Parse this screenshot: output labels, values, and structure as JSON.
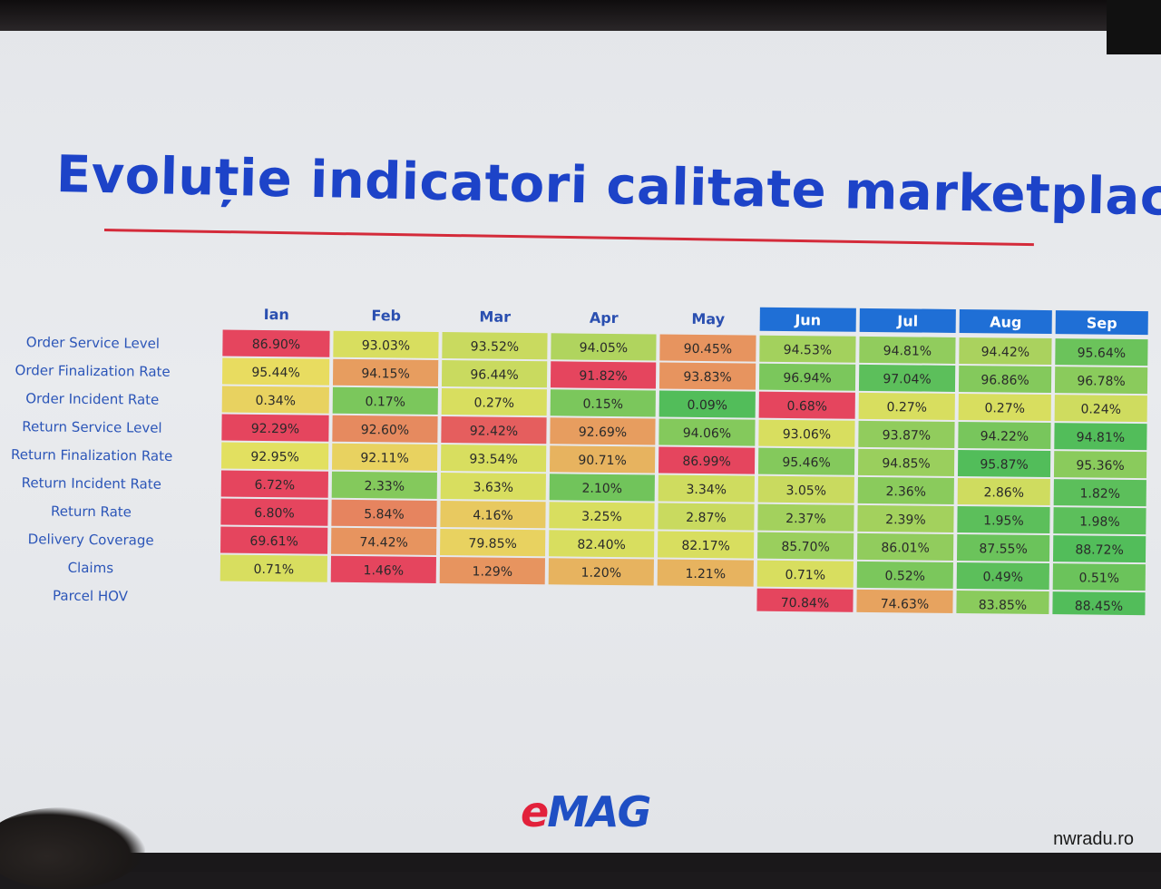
{
  "title": "Evoluție indicatori calitate marketplace",
  "logo": {
    "e": "e",
    "mag": "MAG"
  },
  "watermark": "nwradu.ro",
  "colors": {
    "title": "#1d43c8",
    "underline": "#d42b3a",
    "header_highlight": "#1f6fd6",
    "good": "#4cbb5a",
    "mid": "#e6e25a",
    "bad": "#e5455e"
  },
  "chart_data": {
    "type": "heatmap",
    "columns": [
      "Ian",
      "Feb",
      "Mar",
      "Apr",
      "May",
      "Jun",
      "Jul",
      "Aug",
      "Sep"
    ],
    "highlighted_columns": [
      "Jun",
      "Jul",
      "Aug",
      "Sep"
    ],
    "rows": [
      {
        "label": "Order Service Level",
        "values": [
          "86.90%",
          "93.03%",
          "93.52%",
          "94.05%",
          "90.45%",
          "94.53%",
          "94.81%",
          "94.42%",
          "95.64%"
        ],
        "heat": [
          0.0,
          0.55,
          0.6,
          0.68,
          0.25,
          0.72,
          0.78,
          0.7,
          0.9
        ]
      },
      {
        "label": "Order Finalization Rate",
        "values": [
          "95.44%",
          "94.15%",
          "96.44%",
          "91.82%",
          "93.83%",
          "96.94%",
          "97.04%",
          "96.86%",
          "96.78%"
        ],
        "heat": [
          0.48,
          0.28,
          0.6,
          0.0,
          0.25,
          0.85,
          0.95,
          0.82,
          0.8
        ]
      },
      {
        "label": "Order Incident Rate",
        "values": [
          "0.34%",
          "0.17%",
          "0.27%",
          "0.15%",
          "0.09%",
          "0.68%",
          "0.27%",
          "0.27%",
          "0.24%"
        ],
        "heat": [
          0.45,
          0.85,
          0.55,
          0.85,
          0.98,
          0.0,
          0.55,
          0.55,
          0.58
        ]
      },
      {
        "label": "Return Service Level",
        "values": [
          "92.29%",
          "92.60%",
          "92.42%",
          "92.69%",
          "94.06%",
          "93.06%",
          "93.87%",
          "94.22%",
          "94.81%"
        ],
        "heat": [
          0.0,
          0.22,
          0.08,
          0.28,
          0.82,
          0.55,
          0.78,
          0.86,
          0.98
        ]
      },
      {
        "label": "Return Finalization Rate",
        "values": [
          "92.95%",
          "92.11%",
          "93.54%",
          "90.71%",
          "86.99%",
          "95.46%",
          "94.85%",
          "95.87%",
          "95.36%"
        ],
        "heat": [
          0.52,
          0.45,
          0.55,
          0.35,
          0.0,
          0.82,
          0.75,
          0.98,
          0.8
        ]
      },
      {
        "label": "Return Incident Rate",
        "values": [
          "6.72%",
          "2.33%",
          "3.63%",
          "2.10%",
          "3.34%",
          "3.05%",
          "2.36%",
          "2.86%",
          "1.82%"
        ],
        "heat": [
          0.0,
          0.82,
          0.55,
          0.88,
          0.58,
          0.6,
          0.8,
          0.58,
          0.95
        ]
      },
      {
        "label": "Return Rate",
        "values": [
          "6.80%",
          "5.84%",
          "4.16%",
          "3.25%",
          "2.87%",
          "2.37%",
          "2.39%",
          "1.95%",
          "1.98%"
        ],
        "heat": [
          0.0,
          0.2,
          0.42,
          0.55,
          0.6,
          0.72,
          0.72,
          0.95,
          0.95
        ]
      },
      {
        "label": "Delivery Coverage",
        "values": [
          "69.61%",
          "74.42%",
          "79.85%",
          "82.40%",
          "82.17%",
          "85.70%",
          "86.01%",
          "87.55%",
          "88.72%"
        ],
        "heat": [
          0.0,
          0.25,
          0.45,
          0.55,
          0.55,
          0.75,
          0.78,
          0.9,
          0.98
        ]
      },
      {
        "label": "Claims",
        "values": [
          "0.71%",
          "1.46%",
          "1.29%",
          "1.20%",
          "1.21%",
          "0.71%",
          "0.52%",
          "0.49%",
          "0.51%"
        ],
        "heat": [
          0.55,
          0.0,
          0.25,
          0.35,
          0.35,
          0.55,
          0.85,
          0.95,
          0.9
        ]
      },
      {
        "label": "Parcel HOV",
        "values": [
          null,
          null,
          null,
          null,
          null,
          "70.84%",
          "74.63%",
          "83.85%",
          "88.45%"
        ],
        "heat": [
          null,
          null,
          null,
          null,
          null,
          0.0,
          0.3,
          0.8,
          0.98
        ]
      }
    ]
  }
}
